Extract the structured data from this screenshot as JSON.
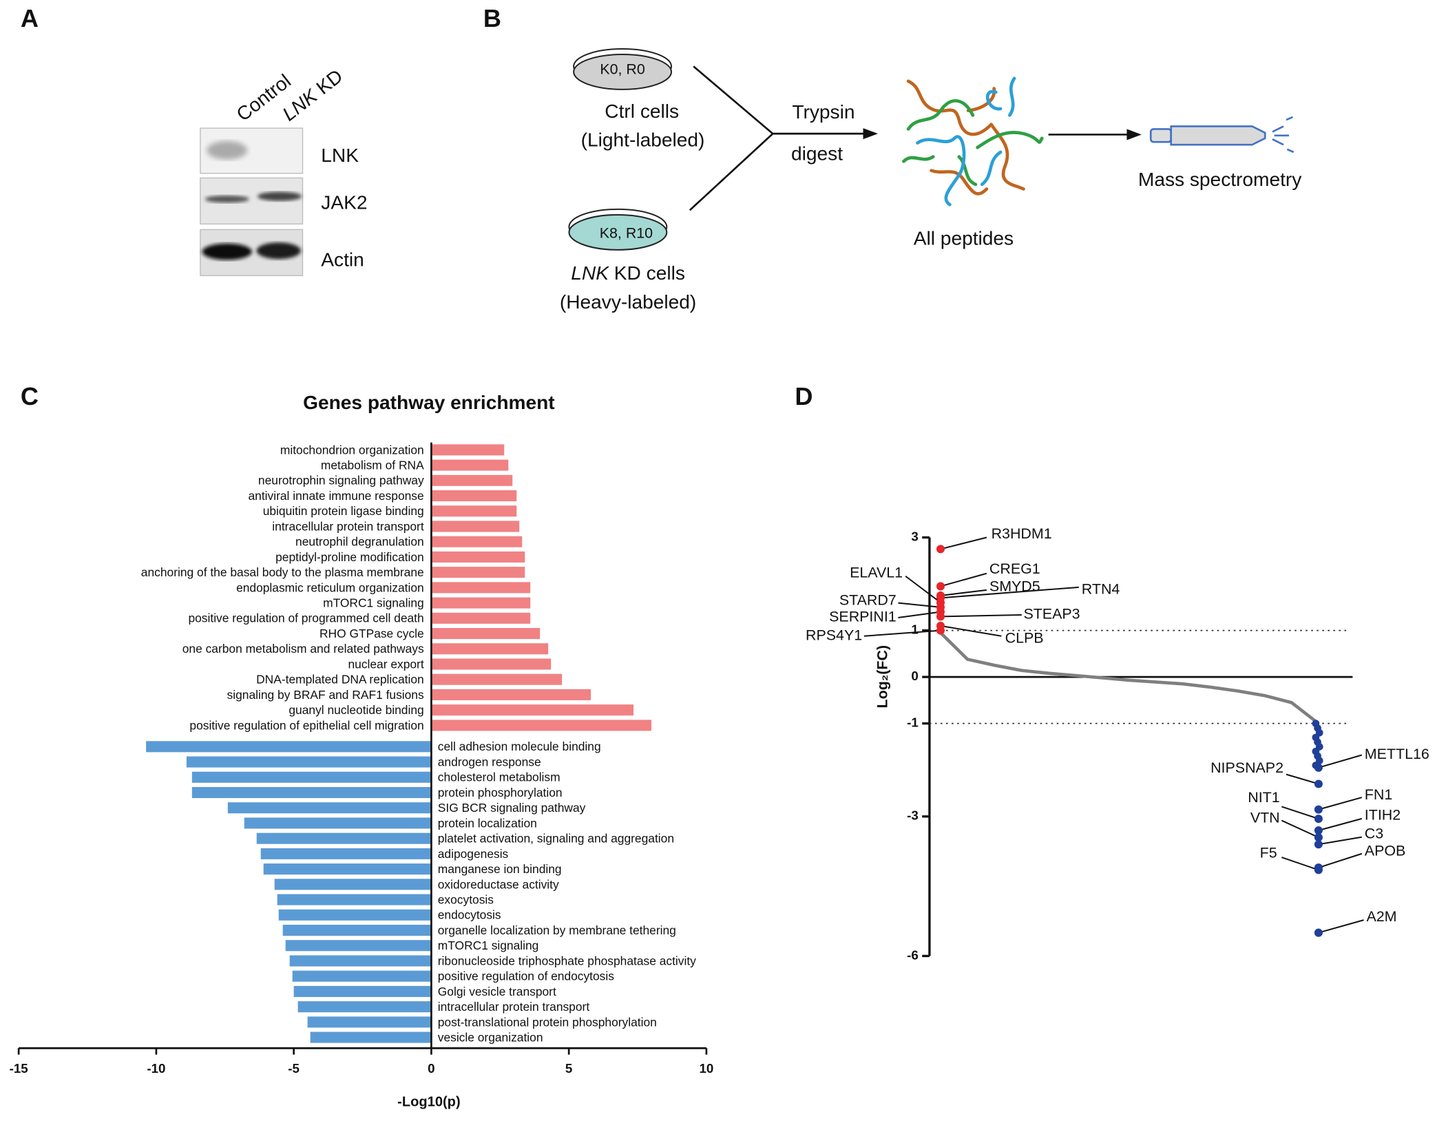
{
  "panel_labels": [
    "A",
    "B",
    "C",
    "D"
  ],
  "panel_a": {
    "lane_control": "Control",
    "lane_kd_gene": "LNK",
    "lane_kd_suffix": " KD",
    "bands": [
      "LNK",
      "JAK2",
      "Actin"
    ]
  },
  "panel_b": {
    "ctrl_dish": "K0, R0",
    "ctrl_cells": [
      "Ctrl cells",
      "(Light-labeled)"
    ],
    "kd_dish": "K8, R10",
    "kd_cells_gene": "LNK",
    "kd_cells_suffix": " KD cells",
    "kd_cells_note": "(Heavy-labeled)",
    "step": [
      "Trypsin",
      "digest"
    ],
    "peptides": "All peptides",
    "ms": "Mass spectrometry"
  },
  "chart_data": [
    {
      "type": "bar",
      "orientation": "horizontal",
      "title": "Genes pathway enrichment",
      "x_label": "-Log10(p)",
      "categories": [
        "mitochondrion organization",
        "metabolism of RNA",
        "neurotrophin signaling pathway",
        "antiviral innate immune response",
        "ubiquitin protein ligase binding",
        "intracellular protein transport",
        "neutrophil degranulation",
        "peptidyl-proline modification",
        "anchoring of the basal body to the plasma membrane",
        "endoplasmic reticulum organization",
        "mTORC1 signaling",
        "positive regulation of programmed cell death",
        "RHO GTPase cycle",
        "one carbon metabolism and related pathways",
        "nuclear export",
        "DNA-templated DNA replication",
        "signaling by BRAF and RAF1 fusions",
        "guanyl nucleotide binding",
        "positive regulation of epithelial cell migration",
        "cell adhesion molecule binding",
        "androgen response",
        "cholesterol metabolism",
        "protein phosphorylation",
        "SIG BCR signaling pathway",
        "protein localization",
        "platelet activation, signaling and aggregation",
        "adipogenesis",
        "manganese ion binding",
        "oxidoreductase activity",
        "exocytosis",
        "endocytosis",
        "organelle localization by membrane tethering",
        "mTORC1 signaling",
        "ribonucleoside triphosphate phosphatase activity",
        "positive regulation of endocytosis",
        "Golgi vesicle transport",
        "intracellular protein transport",
        "post-translational protein phosphorylation",
        "vesicle organization"
      ],
      "values": [
        2.65,
        2.8,
        2.95,
        3.1,
        3.1,
        3.2,
        3.3,
        3.4,
        3.4,
        3.6,
        3.6,
        3.6,
        3.95,
        4.25,
        4.35,
        4.75,
        5.8,
        7.35,
        8.0,
        -10.37,
        -8.9,
        -8.7,
        -8.7,
        -7.4,
        -6.8,
        -6.35,
        -6.2,
        -6.1,
        -5.7,
        -5.6,
        -5.55,
        -5.4,
        -5.3,
        -5.15,
        -5.05,
        -5.0,
        -4.85,
        -4.5,
        -4.4
      ],
      "xlim": [
        -15,
        10
      ],
      "xticks": [
        -15,
        -10,
        -5,
        0,
        5,
        10
      ],
      "color_positive": "#f08284",
      "color_negative": "#5b9bd5"
    },
    {
      "type": "scatter",
      "y_label": "Log₂(FC)",
      "ylim": [
        -6,
        3
      ],
      "yticks": [
        3,
        1,
        0,
        -1,
        -3,
        -6
      ],
      "thresholds": [
        1,
        -1
      ],
      "curve": [
        0.95,
        0.38,
        0.25,
        0.14,
        0.08,
        0.03,
        -0.02,
        -0.07,
        -0.11,
        -0.15,
        -0.22,
        -0.3,
        -0.4,
        -0.55,
        -1.0
      ],
      "curve_color": "#7f7f7f",
      "up_color": "#e8262a",
      "down_color": "#1f3f99",
      "up_points": [
        {
          "label": "R3HDM1",
          "value": 2.75
        },
        {
          "label": "CREG1",
          "value": 1.95
        },
        {
          "label": "SMYD5",
          "value": 1.75
        },
        {
          "label": "RTN4",
          "value": 1.7
        },
        {
          "label": "ELAVL1",
          "value": 1.6
        },
        {
          "label": "STARD7",
          "value": 1.5
        },
        {
          "label": "SERPINI1",
          "value": 1.4
        },
        {
          "label": "STEAP3",
          "value": 1.3
        },
        {
          "label": "CLPB",
          "value": 1.1
        },
        {
          "label": "RPS4Y1",
          "value": 1.0
        }
      ],
      "down_points": [
        {
          "label": "METTL16",
          "value": -1.95
        },
        {
          "label": "NIPSNAP2",
          "value": -2.3
        },
        {
          "label": "FN1",
          "value": -2.85
        },
        {
          "label": "NIT1",
          "value": -3.05
        },
        {
          "label": "ITIH2",
          "value": -3.3
        },
        {
          "label": "VTN",
          "value": -3.45
        },
        {
          "label": "C3",
          "value": -3.6
        },
        {
          "label": "APOB",
          "value": -4.1
        },
        {
          "label": "F5",
          "value": -4.15
        },
        {
          "label": "A2M",
          "value": -5.5
        }
      ],
      "down_cluster": [
        -1.0,
        -1.1,
        -1.2,
        -1.3,
        -1.4,
        -1.5,
        -1.6,
        -1.7,
        -1.8,
        -1.9
      ]
    }
  ]
}
